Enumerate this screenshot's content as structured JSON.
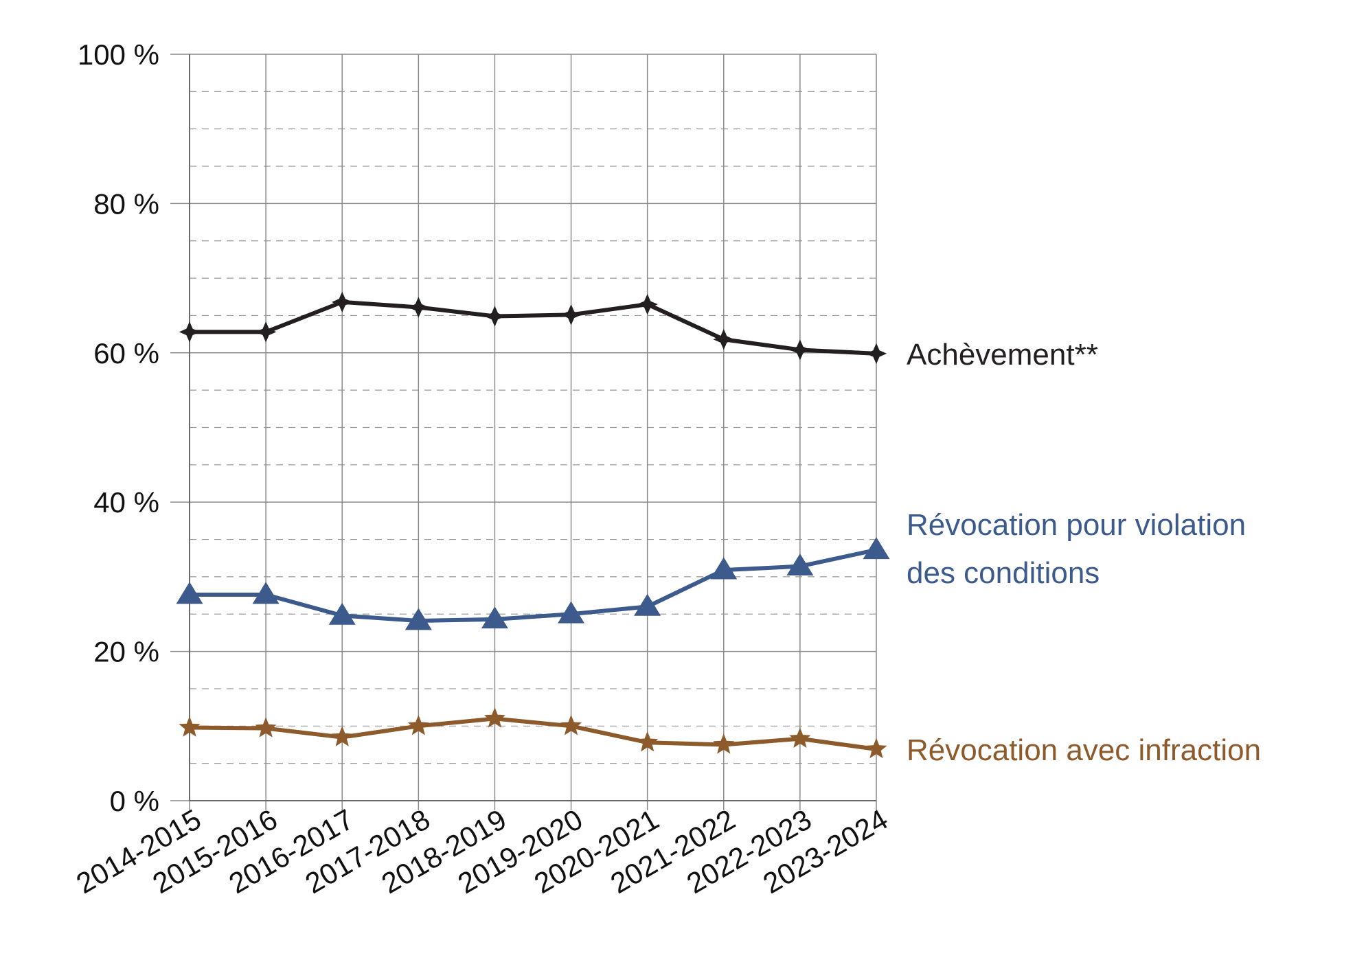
{
  "chart_data": {
    "type": "line",
    "categories": [
      "2014-2015",
      "2015-2016",
      "2016-2017",
      "2017-2018",
      "2018-2019",
      "2019-2020",
      "2020-2021",
      "2021-2022",
      "2022-2023",
      "2023-2024"
    ],
    "ylim": [
      0,
      100
    ],
    "y_ticks": [
      0,
      20,
      40,
      60,
      80,
      100
    ],
    "y_tick_labels": [
      "0 %",
      "20 %",
      "40 %",
      "60 %",
      "80 %",
      "100 %"
    ],
    "y_minor_step": 5,
    "grid": true,
    "legend": "direct labels at right end of each line",
    "series": [
      {
        "name": "Achèvement**",
        "color": "#231f20",
        "marker": "star-4",
        "values": [
          62.8,
          62.8,
          66.8,
          66.1,
          64.9,
          65.1,
          66.5,
          61.8,
          60.4,
          59.9
        ]
      },
      {
        "name": "Révocation pour violation des conditions",
        "label_lines": [
          "Révocation pour violation",
          "des conditions"
        ],
        "color": "#3c5a8c",
        "marker": "triangle",
        "values": [
          27.6,
          27.6,
          24.8,
          24.1,
          24.3,
          25.0,
          26.0,
          30.9,
          31.4,
          33.6
        ]
      },
      {
        "name": "Révocation avec infraction",
        "color": "#8c5a2b",
        "marker": "star-5",
        "values": [
          9.8,
          9.7,
          8.5,
          10.0,
          11.0,
          10.0,
          7.8,
          7.5,
          8.3,
          6.9
        ]
      }
    ]
  }
}
